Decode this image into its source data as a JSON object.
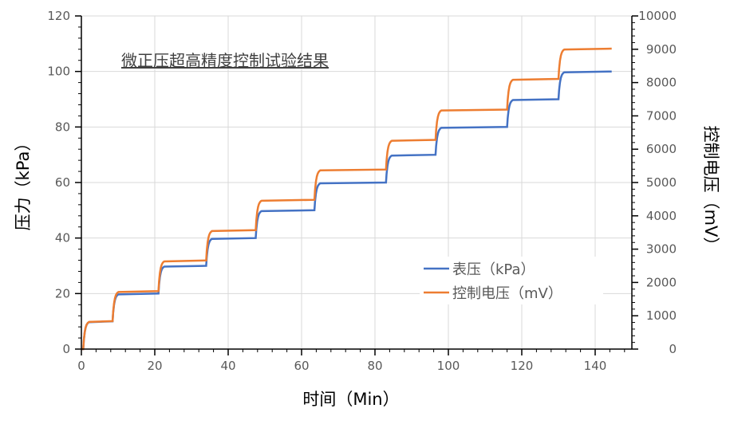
{
  "chart_data": {
    "type": "line",
    "title": "微正压超高精度控制试验结果",
    "xlabel": "时间（Min）",
    "ylabel": "压力（kPa）",
    "y2label": "控制电压（mV）",
    "xlim": [
      0,
      150
    ],
    "ylim": [
      0,
      120
    ],
    "y2lim": [
      0,
      10000
    ],
    "xticks": [
      0,
      20,
      40,
      60,
      80,
      100,
      120,
      140
    ],
    "yticks": [
      0,
      20,
      40,
      60,
      80,
      100,
      120
    ],
    "y2ticks": [
      0,
      1000,
      2000,
      3000,
      4000,
      5000,
      6000,
      7000,
      8000,
      9000,
      10000
    ],
    "grid": true,
    "legend_position": "lower-right",
    "end_time": 144.5,
    "step_times": [
      0.5,
      8.5,
      21,
      34,
      47.5,
      63.5,
      83,
      96.5,
      116,
      130
    ],
    "series": [
      {
        "name": "表压（kPa）",
        "axis": "left",
        "color": "#4472C4",
        "values": [
          10,
          20,
          30,
          40,
          50,
          60,
          70,
          80,
          90,
          100
        ]
      },
      {
        "name": "控制电压（mV）",
        "axis": "right",
        "color": "#ED7D31",
        "values": [
          840,
          1740,
          2660,
          3570,
          4480,
          5390,
          6280,
          7190,
          8110,
          9020
        ]
      }
    ]
  }
}
